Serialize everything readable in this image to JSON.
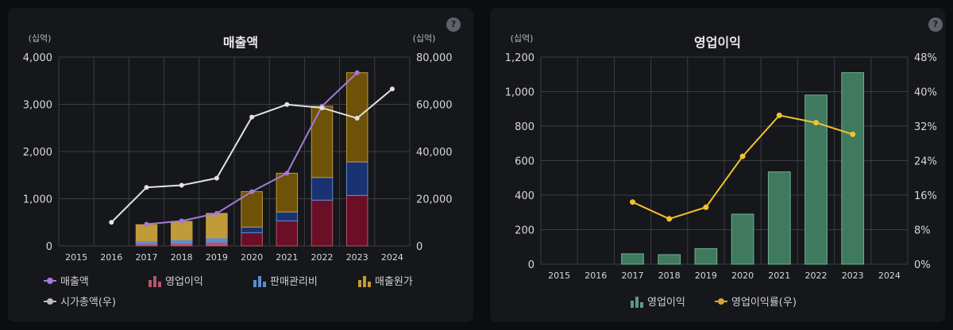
{
  "colors": {
    "grid": "#3a3d43",
    "axis_text": "#d8d8d8",
    "revenue_line": "#a57ad8",
    "market_cap_line": "#e2e2e2",
    "operating_profit_bar": "#b5556e",
    "operating_profit_bar_dark": "#6b0f26",
    "sga_bar": "#5a8fd0",
    "sga_bar_dark": "#1a3272",
    "cogs_bar": "#c19a3a",
    "cogs_bar_dark": "#6e5208",
    "op_profit_green": "#3f7a5e",
    "op_margin_line": "#f2c12e"
  },
  "help_label": "?",
  "chart_data": [
    {
      "type": "bar",
      "title": "매출액",
      "unit_left": "(십억)",
      "unit_right": "(십억)",
      "categories": [
        "2015",
        "2016",
        "2017",
        "2018",
        "2019",
        "2020",
        "2021",
        "2022",
        "2023",
        "2024"
      ],
      "ylim_left": [
        0,
        4000
      ],
      "yticks_left": [
        "0",
        "1,000",
        "2,000",
        "3,000",
        "4,000"
      ],
      "ylim_right": [
        0,
        80000
      ],
      "yticks_right": [
        "0",
        "20,000",
        "40,000",
        "60,000",
        "80,000"
      ],
      "stacked_bars": [
        {
          "name": "영업이익",
          "values": [
            null,
            null,
            45,
            60,
            80,
            280,
            530,
            970,
            1070
          ]
        },
        {
          "name": "판매관리비",
          "values": [
            null,
            null,
            60,
            70,
            90,
            120,
            190,
            480,
            710
          ]
        },
        {
          "name": "매출원가",
          "values": [
            null,
            null,
            345,
            390,
            520,
            750,
            820,
            1510,
            1890
          ]
        }
      ],
      "dark_bar_years": [
        "2020",
        "2021",
        "2022",
        "2023"
      ],
      "series": [
        {
          "name": "매출액",
          "axis": "left",
          "values": [
            null,
            null,
            460,
            530,
            690,
            1150,
            1540,
            2960,
            3670,
            null
          ]
        },
        {
          "name": "시가총액(우)",
          "axis": "right",
          "values": [
            null,
            10000,
            24800,
            25700,
            28700,
            54600,
            59900,
            58500,
            54100,
            66500
          ]
        }
      ],
      "legend": [
        "매출액",
        "영업이익",
        "판매관리비",
        "매출원가",
        "시가총액(우)"
      ],
      "grid": true
    },
    {
      "type": "bar",
      "title": "영업이익",
      "unit_left": "(십억)",
      "categories": [
        "2015",
        "2016",
        "2017",
        "2018",
        "2019",
        "2020",
        "2021",
        "2022",
        "2023",
        "2024"
      ],
      "ylim_left": [
        0,
        1200
      ],
      "yticks_left": [
        "0",
        "200",
        "400",
        "600",
        "800",
        "1,000",
        "1,200"
      ],
      "ylim_right": [
        0,
        48
      ],
      "yticks_right": [
        "0%",
        "8%",
        "16%",
        "24%",
        "32%",
        "40%",
        "48%"
      ],
      "series": [
        {
          "name": "영업이익",
          "axis": "left",
          "kind": "bar",
          "values": [
            null,
            null,
            60,
            55,
            90,
            290,
            535,
            980,
            1110,
            null
          ]
        },
        {
          "name": "영업이익률(우)",
          "axis": "right",
          "kind": "line",
          "values": [
            null,
            null,
            14.4,
            10.5,
            13.2,
            25.0,
            34.5,
            32.8,
            30.1,
            null
          ]
        }
      ],
      "legend": [
        "영업이익",
        "영업이익률(우)"
      ],
      "grid": true
    }
  ]
}
